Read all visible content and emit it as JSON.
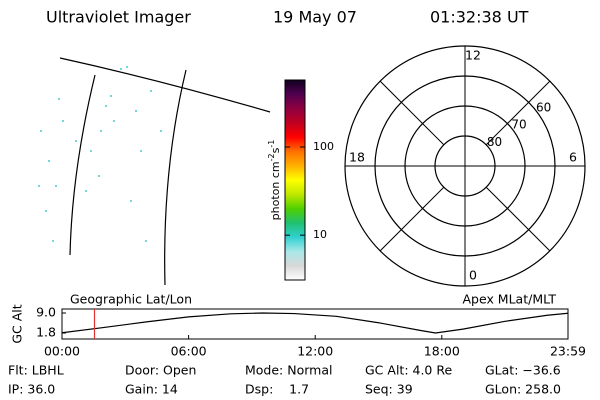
{
  "header": {
    "title": "Ultraviolet Imager",
    "date": "19 May 07",
    "time": "01:32:38 UT"
  },
  "chart_data": [
    {
      "type": "colorbar",
      "label_parts": [
        "photon cm",
        "-2",
        "s",
        "-1"
      ],
      "log_scale": true,
      "ylim": [
        3.1,
        575
      ],
      "yticks": [
        10,
        100
      ],
      "colors": [
        "#ffffff",
        "#d8d8d8",
        "#a8e8e8",
        "#30d0d0",
        "#20c070",
        "#50d000",
        "#c0e800",
        "#ffff00",
        "#ffb000",
        "#ff7000",
        "#ff0000",
        "#c00020",
        "#900040",
        "#500050",
        "#100020"
      ]
    },
    {
      "type": "polar",
      "rlim": [
        90,
        50
      ],
      "rticks": [
        80,
        70,
        60
      ],
      "rings": [
        80,
        70,
        60,
        50
      ],
      "thetaticks": [
        12,
        18,
        6,
        0
      ]
    },
    {
      "type": "line",
      "ylabel": "GC Alt",
      "annotations": [
        "Geographic Lat/Lon",
        "Apex MLat/MLT"
      ],
      "x": [
        0,
        2,
        4,
        6,
        8,
        9.5,
        11,
        13,
        15,
        17,
        17.7,
        19,
        21,
        23,
        23.98
      ],
      "values": [
        1.9,
        3.8,
        5.8,
        7.6,
        8.7,
        9.0,
        8.8,
        7.8,
        5.5,
        2.7,
        1.8,
        3.2,
        6.0,
        8.2,
        8.9
      ],
      "color": "#000000",
      "marker_x": 1.54,
      "marker_color": "#e03030",
      "xlim": [
        0,
        23.98
      ],
      "ylim": [
        -0.36,
        10.44
      ],
      "xticks": [
        {
          "value": 0,
          "label": "00:00"
        },
        {
          "value": 6,
          "label": "06:00"
        },
        {
          "value": 12,
          "label": "12:00"
        },
        {
          "value": 18,
          "label": "18:00"
        },
        {
          "value": 23.98,
          "label": "23:59"
        }
      ],
      "yticks": [
        {
          "value": 9,
          "label": "9.0"
        },
        {
          "value": 1.8,
          "label": "1.8"
        }
      ]
    }
  ],
  "footer": {
    "rows": [
      [
        "Flt: LBHL",
        "Door: Open",
        "Mode: Normal",
        "GC Alt: 4.0 Re",
        "GLat: −36.6"
      ],
      [
        "IP: 36.0",
        "Gain: 14",
        "Dsp:    1.7",
        "Seq: 39",
        "GLon: 258.0"
      ]
    ]
  }
}
